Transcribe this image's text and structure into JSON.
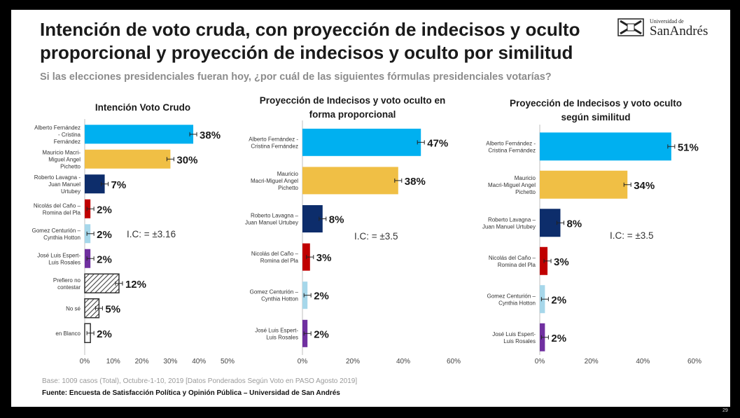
{
  "title": "Intención de voto cruda, con proyección de indecisos y oculto proporcional y proyección de indecisos y oculto por similitud",
  "question": "Si las elecciones presidenciales fueran hoy, ¿por cuál de las siguientes fórmulas presidenciales votarías?",
  "logo": {
    "small": "Universidad de",
    "big": "SanAndrés"
  },
  "base_note": "Base: 1009 casos (Total), Octubre-1-10, 2019 [Datos Ponderados Según Voto en PASO Agosto 2019]",
  "source_note": "Fuente: Encuesta de Satisfacción Política y Opinión Pública – Universidad de San Andrés",
  "page_number": "29",
  "colors": {
    "fernandez": "#00b0f0",
    "macri": "#f0bf45",
    "lavagna": "#0d2d6b",
    "del_cano": "#c00000",
    "centurion": "#a6d7ea",
    "espert": "#7030a0",
    "hatch": "#444444",
    "blanco": "#ffffff"
  },
  "chart_data": [
    {
      "type": "bar",
      "orientation": "horizontal",
      "title": "Intención Voto Crudo",
      "categories": [
        "Alberto Fernández - Cristina Fernández",
        "Mauricio Macri- Miguel Angel Pichetto",
        "Roberto Lavagna - Juan Manuel Urtubey",
        "Nicolás del Caño – Romina del Pla",
        "Gomez Centurión – Cynthia Hotton",
        "José Luis Espert- Luis Rosales",
        "Prefiero no contestar",
        "No sé",
        "en Blanco"
      ],
      "values": [
        38,
        30,
        7,
        2,
        2,
        2,
        12,
        5,
        2
      ],
      "data_labels": [
        "38%",
        "30%",
        "7%",
        "2%",
        "2%",
        "2%",
        "12%",
        "5%",
        "2%"
      ],
      "fills": [
        "fernandez",
        "macri",
        "lavagna",
        "del_cano",
        "centurion",
        "espert",
        "hatch",
        "hatch",
        "blanco"
      ],
      "error_bars": true,
      "xlim": [
        0,
        50
      ],
      "xticks": [
        "0%",
        "10%",
        "20%",
        "30%",
        "40%",
        "50%"
      ],
      "annotation": "I.C: = ±3.16"
    },
    {
      "type": "bar",
      "orientation": "horizontal",
      "title": "Proyección de Indecisos y voto oculto en forma proporcional",
      "categories": [
        "Alberto Fernández - Cristina Fernández",
        "Mauricio Macri-Miguel Angel Pichetto",
        "Roberto Lavagna – Juan Manuel Urtubey",
        "Nicolás del Caño – Romina del Pla",
        "Gomez Centurión – Cynthia Hotton",
        "José Luis Espert- Luis Rosales"
      ],
      "values": [
        47,
        38,
        8,
        3,
        2,
        2
      ],
      "data_labels": [
        "47%",
        "38%",
        "8%",
        "3%",
        "2%",
        "2%"
      ],
      "fills": [
        "fernandez",
        "macri",
        "lavagna",
        "del_cano",
        "centurion",
        "espert"
      ],
      "error_bars": true,
      "xlim": [
        0,
        60
      ],
      "xticks": [
        "0%",
        "20%",
        "40%",
        "60%"
      ],
      "annotation": "I.C: = ±3.5"
    },
    {
      "type": "bar",
      "orientation": "horizontal",
      "title": "Proyección de Indecisos y voto oculto según similitud",
      "categories": [
        "Alberto Fernández - Cristina Fernández",
        "Mauricio Macri-Miguel Angel Pichetto",
        "Roberto Lavagna – Juan Manuel Urtubey",
        "Nicolás del Caño – Romina del Pla",
        "Gomez Centurión – Cynthia Hotton",
        "José Luis Espert- Luis Rosales"
      ],
      "values": [
        51,
        34,
        8,
        3,
        2,
        2
      ],
      "data_labels": [
        "51%",
        "34%",
        "8%",
        "3%",
        "2%",
        "2%"
      ],
      "fills": [
        "fernandez",
        "macri",
        "lavagna",
        "del_cano",
        "centurion",
        "espert"
      ],
      "error_bars": true,
      "xlim": [
        0,
        60
      ],
      "xticks": [
        "0%",
        "20%",
        "40%",
        "60%"
      ],
      "annotation": "I.C: = ±3.5"
    }
  ]
}
